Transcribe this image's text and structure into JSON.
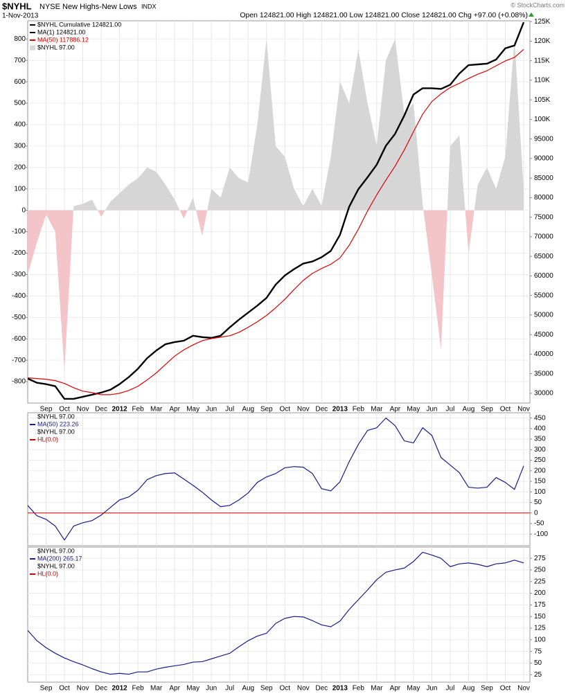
{
  "header": {
    "symbol": "$NYHL",
    "name": "NYSE New Highs-New Lows",
    "exchange": "INDX",
    "date": "1-Nov-2013",
    "quote": "Open 124821.00  High 124821.00  Low 124821.00  Close 124821.00  Chg +97.00 (+0.08%)",
    "credit": "© StockCharts.com"
  },
  "chart_data": [
    {
      "type": "line",
      "legend_title": "$NYHL  Cumulative 124821.00",
      "categories": [
        null,
        null,
        "Sep",
        null,
        "Oct",
        null,
        "Nov",
        null,
        "Dec",
        null,
        "2012",
        null,
        "Feb",
        null,
        "Mar",
        null,
        "Apr",
        null,
        "May",
        null,
        "Jun",
        null,
        "Jul",
        null,
        "Aug",
        null,
        "Sep",
        null,
        "Oct",
        null,
        "Nov",
        null,
        "Dec",
        null,
        "2013",
        null,
        "Feb",
        null,
        "Mar",
        null,
        "Apr",
        null,
        "May",
        null,
        "Jun",
        null,
        "Jul",
        null,
        "Aug",
        null,
        "Sep",
        null,
        "Oct",
        null,
        "Nov"
      ],
      "ylim": [
        -900,
        885
      ],
      "yticks": [
        -800,
        -700,
        -600,
        -500,
        -400,
        -300,
        -200,
        -100,
        0,
        100,
        200,
        300,
        400,
        500,
        600,
        700,
        800
      ],
      "y2lim": [
        27500,
        125200
      ],
      "y2ticks": [
        30000,
        35000,
        40000,
        45000,
        50000,
        55000,
        60000,
        65000,
        70000,
        75000,
        80000,
        85000,
        90000,
        95000,
        {
          "value": 100000,
          "label": "100K"
        },
        {
          "value": 105000,
          "label": "105K"
        },
        {
          "value": 110000,
          "label": "110K"
        },
        {
          "value": 115000,
          "label": "115K"
        },
        {
          "value": 120000,
          "label": "120K"
        },
        {
          "value": 125000,
          "label": "125K"
        }
      ],
      "grid": true,
      "series": [
        {
          "name": "MA(1) 124821.00",
          "color": "#000000",
          "axis": "y2",
          "values": [
            33760,
            32690,
            32330,
            31800,
            28570,
            28570,
            29100,
            29640,
            30180,
            30900,
            32330,
            34120,
            36270,
            38960,
            40930,
            42540,
            43080,
            43440,
            44700,
            44340,
            44160,
            44700,
            46850,
            48820,
            50610,
            52400,
            54370,
            57780,
            60110,
            61720,
            63150,
            63690,
            64770,
            66380,
            70500,
            77670,
            82150,
            85200,
            88420,
            93260,
            96310,
            100970,
            106350,
            107960,
            107960,
            107780,
            108850,
            111720,
            113870,
            114050,
            114230,
            115300,
            118170,
            118880,
            124821
          ]
        },
        {
          "name": "MA(50) 117886.12",
          "color": "#e00000",
          "axis": "y2",
          "values": [
            33940,
            33760,
            33580,
            33230,
            32510,
            31430,
            30540,
            30180,
            29640,
            29640,
            30000,
            30720,
            31790,
            33400,
            35200,
            37350,
            39500,
            41110,
            42360,
            43440,
            43980,
            44340,
            44700,
            45590,
            46850,
            48280,
            49890,
            51860,
            54010,
            56520,
            58850,
            60640,
            61900,
            62970,
            64590,
            67810,
            71930,
            76590,
            80710,
            84480,
            88060,
            92180,
            96840,
            101320,
            104550,
            106520,
            108130,
            109210,
            110460,
            111540,
            112430,
            113690,
            114940,
            115840,
            117886
          ]
        },
        {
          "name": "$NYHL 97.00",
          "color": "#d6d6d6",
          "negative_color": "#f3c4c8",
          "style": "area",
          "axis": "y",
          "values": [
            -300,
            -150,
            -20,
            -100,
            -750,
            20,
            30,
            50,
            -30,
            40,
            80,
            120,
            150,
            200,
            180,
            120,
            50,
            -40,
            60,
            -120,
            100,
            60,
            200,
            150,
            130,
            400,
            800,
            300,
            250,
            100,
            20,
            100,
            20,
            250,
            600,
            500,
            750,
            500,
            300,
            700,
            800,
            450,
            500,
            30,
            -300,
            -650,
            300,
            350,
            -200,
            120,
            200,
            100,
            250,
            800,
            97
          ]
        }
      ]
    },
    {
      "type": "line",
      "legend_title": "$NYHL  97.00",
      "y_axis_side": "right",
      "ylim": [
        -155,
        475
      ],
      "yticks": [
        -100,
        -50,
        0,
        50,
        100,
        150,
        200,
        250,
        300,
        350,
        400,
        450
      ],
      "grid": true,
      "series": [
        {
          "name": "MA(50) 223.26",
          "color": "#1a1a8c",
          "values": [
            36,
            -13,
            -30,
            -62,
            -128,
            -62,
            -46,
            -36,
            -10,
            26,
            62,
            76,
            108,
            158,
            177,
            187,
            190,
            161,
            131,
            99,
            62,
            30,
            36,
            62,
            95,
            145,
            171,
            187,
            214,
            220,
            217,
            187,
            115,
            105,
            148,
            243,
            325,
            391,
            404,
            450,
            414,
            342,
            332,
            404,
            368,
            263,
            227,
            191,
            122,
            118,
            122,
            168,
            145,
            112,
            223
          ]
        }
      ],
      "overlay_label": "$NYHL  97.00",
      "hline": {
        "name": "HL(0.0)",
        "value": 0,
        "color": "#cc0000"
      }
    },
    {
      "type": "line",
      "legend_title": "$NYHL  97.00",
      "y_axis_side": "right",
      "categories": [
        null,
        null,
        "Sep",
        null,
        "Oct",
        null,
        "Nov",
        null,
        "Dec",
        null,
        "2012",
        null,
        "Feb",
        null,
        "Mar",
        null,
        "Apr",
        null,
        "May",
        null,
        "Jun",
        null,
        "Jul",
        null,
        "Aug",
        null,
        "Sep",
        null,
        "Oct",
        null,
        "Nov",
        null,
        "Dec",
        null,
        "2013",
        null,
        "Feb",
        null,
        "Mar",
        null,
        "Apr",
        null,
        "May",
        null,
        "Jun",
        null,
        "Jul",
        null,
        "Aug",
        null,
        "Sep",
        null,
        "Oct",
        null,
        "Nov"
      ],
      "ylim": [
        9,
        299
      ],
      "yticks": [
        25,
        50,
        75,
        100,
        125,
        150,
        175,
        200,
        225,
        250,
        275
      ],
      "grid": true,
      "series": [
        {
          "name": "MA(200) 265.17",
          "color": "#1a1a8c",
          "values": [
            120,
            98,
            83,
            71,
            61,
            53,
            46,
            38,
            31,
            26,
            28,
            26,
            31,
            31,
            37,
            41,
            44,
            47,
            52,
            53,
            59,
            65,
            71,
            85,
            98,
            108,
            114,
            135,
            146,
            150,
            149,
            141,
            132,
            128,
            140,
            165,
            186,
            207,
            229,
            245,
            250,
            254,
            268,
            288,
            282,
            275,
            257,
            263,
            265,
            262,
            257,
            263,
            265,
            271,
            265
          ]
        }
      ],
      "overlay_label": "$NYHL  97.00",
      "hline": {
        "name": "HL(0.0)",
        "value": 0,
        "color": "#cc0000"
      }
    }
  ]
}
